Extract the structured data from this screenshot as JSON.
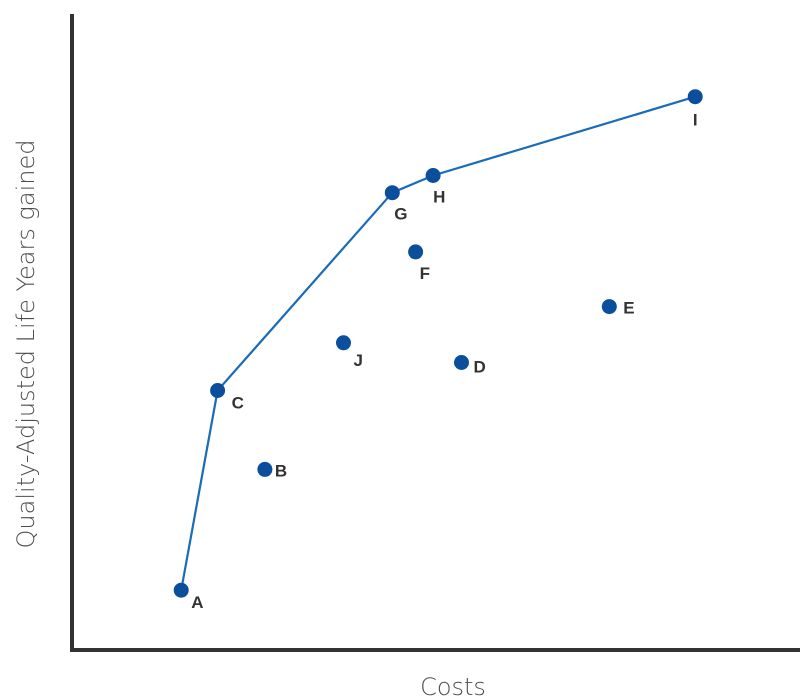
{
  "chart_data": {
    "type": "scatter",
    "title": "",
    "xlabel": "Costs",
    "ylabel": "Quality-Adjusted Life Years gained",
    "xlim": [
      0,
      100
    ],
    "ylim": [
      0,
      100
    ],
    "grid": false,
    "tick_labels": false,
    "colors": {
      "point": "#0b4f9c",
      "frontier": "#1a6bb8",
      "axis": "#333333",
      "label": "#333333"
    },
    "points": [
      {
        "label": "A",
        "x": 15.0,
        "y": 9.4
      },
      {
        "label": "B",
        "x": 26.5,
        "y": 28.4
      },
      {
        "label": "C",
        "x": 20.0,
        "y": 40.8
      },
      {
        "label": "D",
        "x": 53.5,
        "y": 45.2
      },
      {
        "label": "E",
        "x": 73.8,
        "y": 54.0
      },
      {
        "label": "F",
        "x": 47.2,
        "y": 62.6
      },
      {
        "label": "G",
        "x": 44.0,
        "y": 71.9
      },
      {
        "label": "H",
        "x": 49.6,
        "y": 74.6
      },
      {
        "label": "I",
        "x": 85.6,
        "y": 87.0
      },
      {
        "label": "J",
        "x": 37.3,
        "y": 48.3
      }
    ],
    "frontier": [
      "A",
      "C",
      "G",
      "H",
      "I"
    ]
  }
}
